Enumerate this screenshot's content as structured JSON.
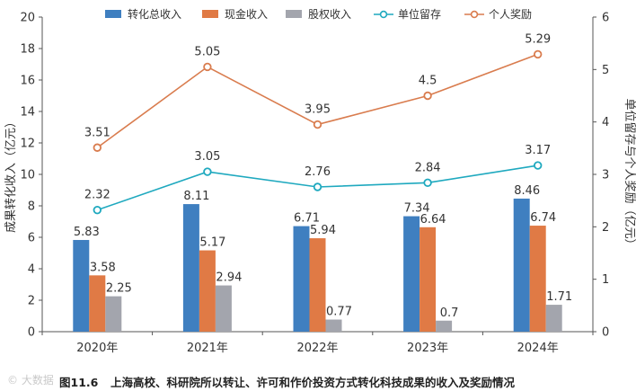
{
  "chart_data": {
    "type": "bar",
    "categories": [
      "2020年",
      "2021年",
      "2022年",
      "2023年",
      "2024年"
    ],
    "series": [
      {
        "name": "转化总收入",
        "kind": "bar",
        "axis": "left",
        "color": "#3f7fc0",
        "values": [
          5.83,
          8.11,
          6.71,
          7.34,
          8.46
        ]
      },
      {
        "name": "现金收入",
        "kind": "bar",
        "axis": "left",
        "color": "#e07a45",
        "values": [
          3.58,
          5.17,
          5.94,
          6.64,
          6.74
        ]
      },
      {
        "name": "股权收入",
        "kind": "bar",
        "axis": "left",
        "color": "#a3a5ad",
        "values": [
          2.25,
          2.94,
          0.77,
          0.7,
          1.71
        ]
      },
      {
        "name": "单位留存",
        "kind": "line",
        "axis": "right",
        "color": "#1fa9bf",
        "values": [
          2.32,
          3.05,
          2.76,
          2.84,
          3.17
        ]
      },
      {
        "name": "个人奖励",
        "kind": "line",
        "axis": "right",
        "color": "#d97c4e",
        "values": [
          3.51,
          5.05,
          3.95,
          4.5,
          5.29
        ]
      }
    ],
    "ylabel": "成果转化收入（亿元）",
    "y2label": "单位留存与个人奖励（亿元）",
    "ylim": [
      0,
      20
    ],
    "y2lim": [
      0,
      6
    ],
    "yticks": [
      "0",
      "2",
      "4",
      "6",
      "8",
      "10",
      "12",
      "14",
      "16",
      "18",
      "20"
    ],
    "y2ticks": [
      "0",
      "1",
      "2",
      "3",
      "4",
      "5",
      "6"
    ],
    "legend_position": "top",
    "grid": false
  },
  "caption": {
    "label": "图11.6",
    "text": "上海高校、科研院所以转让、许可和作价投资方式转化科技成果的收入及奖励情况"
  },
  "watermark": "© 大数据"
}
